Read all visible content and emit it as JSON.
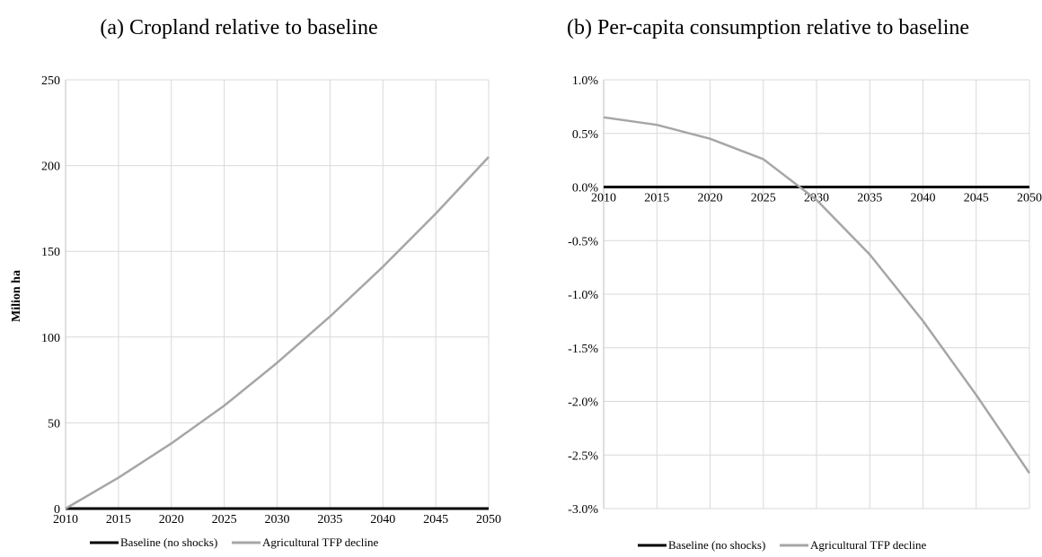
{
  "chart_data": [
    {
      "type": "line",
      "title": "(a) Cropland relative to baseline",
      "ylabel": "Milion ha",
      "xlabel": "",
      "x": [
        2010,
        2015,
        2020,
        2025,
        2030,
        2035,
        2040,
        2045,
        2050
      ],
      "x_tick_labels": [
        "2010",
        "2015",
        "2020",
        "2025",
        "2030",
        "2035",
        "2040",
        "2045",
        "2050"
      ],
      "ylim": [
        0,
        250
      ],
      "y_ticks": [
        0,
        50,
        100,
        150,
        200,
        250
      ],
      "y_tick_labels": [
        "0",
        "50",
        "100",
        "150",
        "200",
        "250"
      ],
      "grid": true,
      "legend_position": "bottom",
      "series": [
        {
          "name": "Baseline (no shocks)",
          "color": "#000000",
          "values": [
            0,
            0,
            0,
            0,
            0,
            0,
            0,
            0,
            0
          ]
        },
        {
          "name": "Agricultural TFP decline",
          "color": "#a6a6a6",
          "values": [
            0,
            18,
            38,
            60,
            85,
            112,
            141,
            172,
            205
          ]
        }
      ]
    },
    {
      "type": "line",
      "title": "(b) Per-capita consumption relative to baseline",
      "ylabel": "",
      "xlabel": "",
      "x": [
        2010,
        2015,
        2020,
        2025,
        2030,
        2035,
        2040,
        2045,
        2050
      ],
      "x_tick_labels": [
        "2010",
        "2015",
        "2020",
        "2025",
        "2030",
        "2035",
        "2040",
        "2045",
        "2050"
      ],
      "ylim": [
        -3.0,
        1.0
      ],
      "y_ticks": [
        -3.0,
        -2.5,
        -2.0,
        -1.5,
        -1.0,
        -0.5,
        0.0,
        0.5,
        1.0
      ],
      "y_tick_labels": [
        "-3.0%",
        "-2.5%",
        "-2.0%",
        "-1.5%",
        "-1.0%",
        "-0.5%",
        "0.0%",
        "0.5%",
        "1.0%"
      ],
      "y_unit": "%",
      "grid": true,
      "legend_position": "bottom",
      "series": [
        {
          "name": "Baseline (no shocks)",
          "color": "#000000",
          "values": [
            0,
            0,
            0,
            0,
            0,
            0,
            0,
            0,
            0
          ]
        },
        {
          "name": "Agricultural TFP decline",
          "color": "#a6a6a6",
          "values": [
            0.65,
            0.58,
            0.45,
            0.26,
            -0.12,
            -0.63,
            -1.25,
            -1.94,
            -2.67
          ]
        }
      ]
    }
  ]
}
